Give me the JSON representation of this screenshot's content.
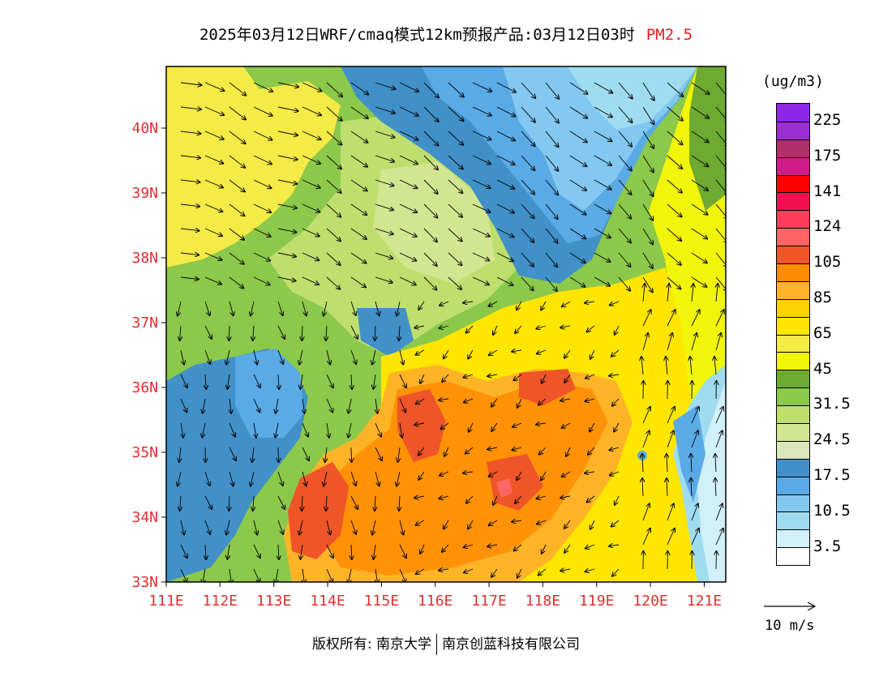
{
  "title": {
    "prefix": "2025年03月12日WRF/cmaq模式12km预报产品:03月12日03时",
    "pollutant": "PM2.5"
  },
  "map": {
    "lat_labels": [
      "40N",
      "39N",
      "38N",
      "37N",
      "36N",
      "35N",
      "34N",
      "33N"
    ],
    "lon_labels": [
      "111E",
      "112E",
      "113E",
      "114E",
      "115E",
      "116E",
      "117E",
      "118E",
      "119E",
      "120E",
      "121E"
    ],
    "lon_range": [
      111,
      121.4
    ],
    "lat_range": [
      33,
      40.95
    ],
    "axis_label_color": "#e03030"
  },
  "legend": {
    "units": "(ug/m3)",
    "colors": [
      "#8c28e6",
      "#9b2fd2",
      "#b0306a",
      "#d01c8b",
      "#ff0000",
      "#ee1050",
      "#ff3c5a",
      "#ff6666",
      "#ee5528",
      "#ff8c00",
      "#ffb428",
      "#ffd200",
      "#ffe600",
      "#f5eb46",
      "#f0f50a",
      "#6eaa32",
      "#8cc84a",
      "#bede6e",
      "#d2e691",
      "#dce6be",
      "#4191c8",
      "#5aaae6",
      "#82c8f0",
      "#a0dcf0",
      "#d2f0fa",
      "#ffffff"
    ],
    "labels": [
      "225",
      "175",
      "141",
      "124",
      "105",
      "85",
      "65",
      "45",
      "31.5",
      "24.5",
      "17.5",
      "10.5",
      "3.5"
    ]
  },
  "wind_reference": {
    "label": "10 m/s"
  },
  "credit": {
    "left": "版权所有: 南京大学",
    "right": "南京创蓝科技有限公司"
  }
}
